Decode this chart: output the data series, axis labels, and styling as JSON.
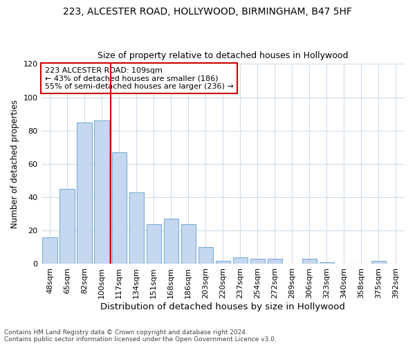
{
  "title1": "223, ALCESTER ROAD, HOLLYWOOD, BIRMINGHAM, B47 5HF",
  "title2": "Size of property relative to detached houses in Hollywood",
  "xlabel": "Distribution of detached houses by size in Hollywood",
  "ylabel": "Number of detached properties",
  "bar_labels": [
    "48sqm",
    "65sqm",
    "82sqm",
    "100sqm",
    "117sqm",
    "134sqm",
    "151sqm",
    "168sqm",
    "186sqm",
    "203sqm",
    "220sqm",
    "237sqm",
    "254sqm",
    "272sqm",
    "289sqm",
    "306sqm",
    "323sqm",
    "340sqm",
    "358sqm",
    "375sqm",
    "392sqm"
  ],
  "bar_values": [
    16,
    45,
    85,
    86,
    67,
    43,
    24,
    27,
    24,
    10,
    2,
    4,
    3,
    3,
    0,
    3,
    1,
    0,
    0,
    2,
    0
  ],
  "bar_color": "#c5d8f0",
  "bar_edge_color": "#7aadd4",
  "vline_color": "#cc0000",
  "vline_x": 3.5,
  "annotation_text": "223 ALCESTER ROAD: 109sqm\n← 43% of detached houses are smaller (186)\n55% of semi-detached houses are larger (236) →",
  "annotation_box_facecolor": "#ffffff",
  "annotation_box_edgecolor": "#cc0000",
  "ylim": [
    0,
    120
  ],
  "yticks": [
    0,
    20,
    40,
    60,
    80,
    100,
    120
  ],
  "footer": "Contains HM Land Registry data © Crown copyright and database right 2024.\nContains public sector information licensed under the Open Government Licence v3.0.",
  "bg_color": "#ffffff",
  "plot_bg_color": "#ffffff",
  "grid_color": "#d0dce8",
  "title1_fontsize": 10,
  "title2_fontsize": 9,
  "xlabel_fontsize": 9.5,
  "ylabel_fontsize": 8.5,
  "tick_fontsize": 8,
  "annotation_fontsize": 8,
  "footer_fontsize": 6.5
}
